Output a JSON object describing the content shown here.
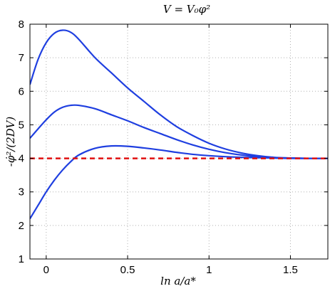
{
  "chart_data": {
    "type": "line",
    "title": "V = V₀φ²",
    "xlabel": "ln a/a*",
    "ylabel": "-φ̇²/(2DV)",
    "xlim": [
      -0.1,
      1.73
    ],
    "ylim": [
      1,
      8
    ],
    "xticks": [
      "0",
      "0.5",
      "1",
      "1.5"
    ],
    "xtick_values": [
      0,
      0.5,
      1,
      1.5
    ],
    "yticks": [
      "1",
      "2",
      "3",
      "4",
      "5",
      "6",
      "7",
      "8"
    ],
    "ytick_values": [
      1,
      2,
      3,
      4,
      5,
      6,
      7,
      8
    ],
    "grid": true,
    "series": [
      {
        "color": "#1f3fe0",
        "style": "solid",
        "x": [
          -0.1,
          -0.05,
          0,
          0.05,
          0.1,
          0.15,
          0.2,
          0.3,
          0.4,
          0.5,
          0.6,
          0.7,
          0.8,
          0.9,
          1.0,
          1.1,
          1.2,
          1.3,
          1.4,
          1.5,
          1.6,
          1.73
        ],
        "y": [
          6.2,
          6.95,
          7.45,
          7.73,
          7.82,
          7.76,
          7.55,
          7.0,
          6.55,
          6.1,
          5.7,
          5.3,
          4.95,
          4.68,
          4.45,
          4.28,
          4.16,
          4.08,
          4.03,
          4.01,
          4.0,
          4.0
        ]
      },
      {
        "color": "#1f3fe0",
        "style": "solid",
        "x": [
          -0.1,
          -0.05,
          0,
          0.05,
          0.1,
          0.15,
          0.2,
          0.3,
          0.4,
          0.5,
          0.6,
          0.7,
          0.8,
          0.9,
          1.0,
          1.1,
          1.2,
          1.3,
          1.4,
          1.5,
          1.6,
          1.73
        ],
        "y": [
          4.6,
          4.88,
          5.15,
          5.38,
          5.52,
          5.58,
          5.58,
          5.48,
          5.3,
          5.12,
          4.92,
          4.74,
          4.56,
          4.4,
          4.27,
          4.17,
          4.1,
          4.05,
          4.02,
          4.01,
          4.0,
          4.0
        ]
      },
      {
        "color": "#1f3fe0",
        "style": "solid",
        "x": [
          -0.1,
          -0.05,
          0,
          0.05,
          0.1,
          0.15,
          0.2,
          0.3,
          0.4,
          0.5,
          0.6,
          0.7,
          0.8,
          0.9,
          1.0,
          1.1,
          1.2,
          1.3,
          1.4,
          1.5,
          1.6,
          1.73
        ],
        "y": [
          2.2,
          2.6,
          3.0,
          3.35,
          3.65,
          3.9,
          4.1,
          4.3,
          4.37,
          4.36,
          4.31,
          4.25,
          4.18,
          4.12,
          4.08,
          4.05,
          4.03,
          4.02,
          4.01,
          4.0,
          4.0,
          4.0
        ]
      },
      {
        "color": "#e01010",
        "style": "dashed",
        "x": [
          -0.1,
          1.73
        ],
        "y": [
          4,
          4
        ]
      }
    ]
  }
}
